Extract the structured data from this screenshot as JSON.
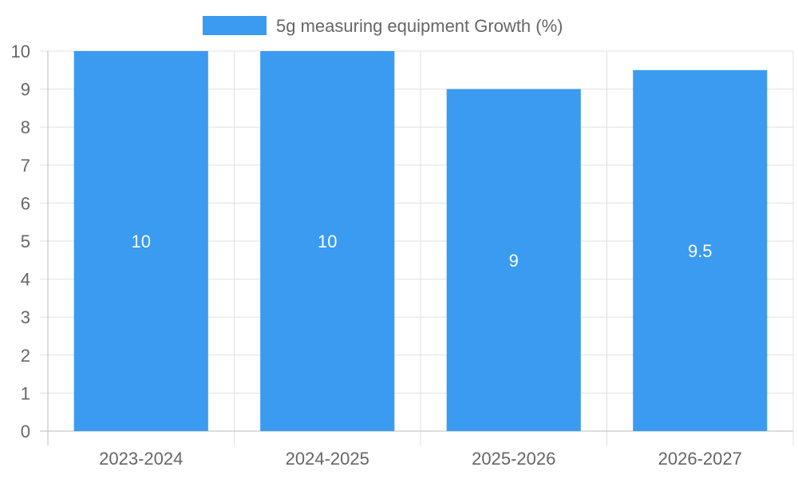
{
  "chart_data": {
    "type": "bar",
    "categories": [
      "2023-2024",
      "2024-2025",
      "2025-2026",
      "2026-2027"
    ],
    "series": [
      {
        "name": "5g measuring equipment Growth (%)",
        "values": [
          10,
          10,
          9,
          9.5
        ],
        "color": "#3a9bf1"
      }
    ],
    "data_labels": [
      "10",
      "10",
      "9",
      "9.5"
    ],
    "yticks": [
      "0",
      "1",
      "2",
      "3",
      "4",
      "5",
      "6",
      "7",
      "8",
      "9",
      "10"
    ],
    "ylim": [
      0,
      10
    ],
    "grid": true,
    "legend_position": "top-center"
  }
}
